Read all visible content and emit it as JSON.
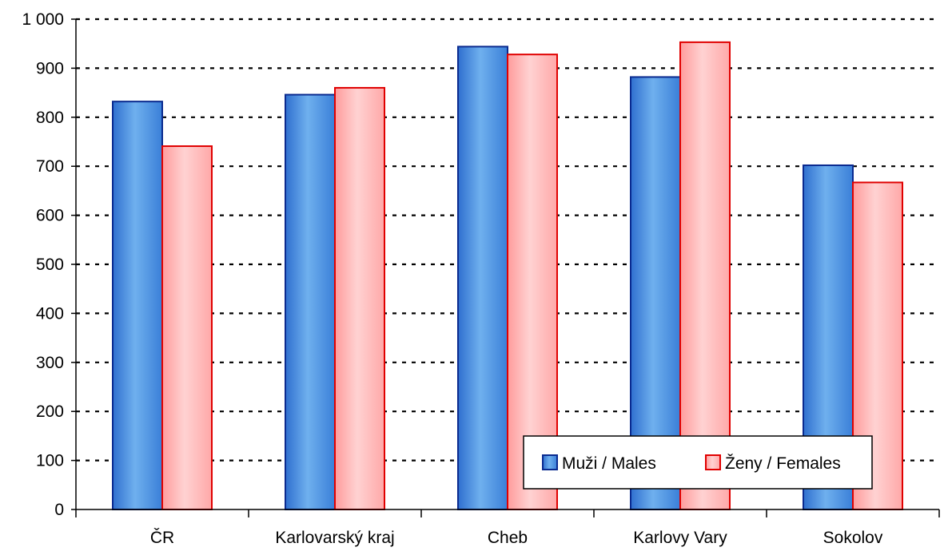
{
  "chart_data": {
    "type": "bar",
    "title": "",
    "xlabel": "",
    "ylabel": "",
    "categories": [
      "ČR",
      "Karlovarský kraj",
      "Cheb",
      "Karlovy Vary",
      "Sokolov"
    ],
    "series": [
      {
        "name": "Muži / Males",
        "values": [
          832,
          846,
          944,
          882,
          702
        ],
        "color": "#3d7fd9",
        "border": "#0a2a8f"
      },
      {
        "name": "Ženy / Females",
        "values": [
          741,
          860,
          928,
          953,
          667
        ],
        "color": "#ffb3b3",
        "border": "#e00000"
      }
    ],
    "ylim": [
      0,
      1000
    ],
    "ytick_step": 100,
    "ytick_labels": [
      "0",
      "100",
      "200",
      "300",
      "400",
      "500",
      "600",
      "700",
      "800",
      "900",
      "1 000"
    ],
    "grid": true,
    "grid_style": "dotted",
    "legend_position": "bottom-right"
  }
}
